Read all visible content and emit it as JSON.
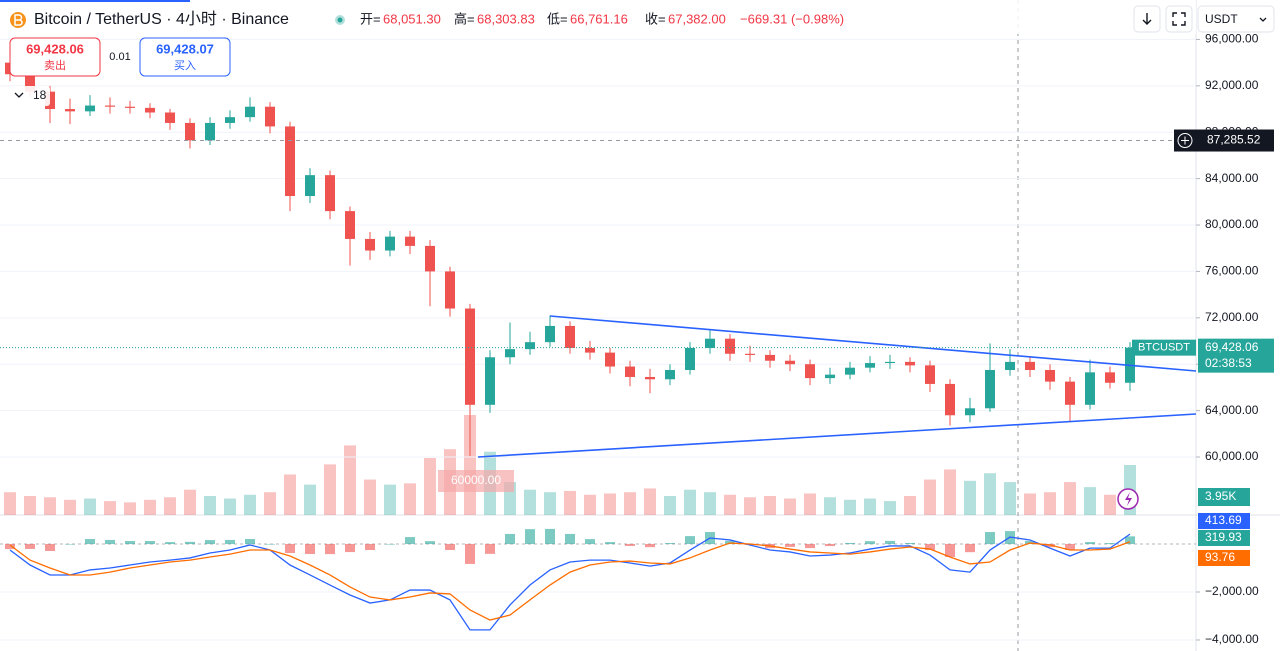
{
  "header": {
    "symbol": "Bitcoin / TetherUS · 4小时 · Binance",
    "open_label": "开=",
    "open": "68,051.30",
    "high_label": "高=",
    "high": "68,303.83",
    "low_label": "低=",
    "low": "66,761.16",
    "close_label": "收=",
    "close": "67,382.00",
    "change": "−669.31 (−0.98%)"
  },
  "toolbar": {
    "currency": "USDT"
  },
  "trade": {
    "sell_price": "69,428.06",
    "sell": "卖出",
    "spread": "0.01",
    "buy_price": "69,428.07",
    "buy": "买入",
    "indicators": "18"
  },
  "chart_data": {
    "type": "candlestick",
    "open": [
      94000,
      93000,
      91500,
      90000,
      89800,
      90300,
      90200,
      90100,
      89700,
      88800,
      87300,
      88800,
      89300,
      90200,
      88500,
      82500,
      84300,
      81200,
      78800,
      77800,
      79000,
      78200,
      76000,
      72800,
      64500,
      68600,
      69300,
      69900,
      71300,
      69400,
      69000,
      67800,
      66900,
      66700,
      67500,
      69400,
      70200,
      68900,
      68800,
      68300,
      68000,
      66800,
      67100,
      67700,
      68100,
      68200,
      67900,
      66300,
      63600,
      64200,
      67500,
      68200,
      67500,
      66500,
      64500,
      67300,
      66400
    ],
    "high": [
      94800,
      93500,
      92000,
      90900,
      91200,
      91000,
      90700,
      90500,
      90000,
      89200,
      89300,
      89900,
      91000,
      90600,
      88900,
      84900,
      84700,
      81600,
      79400,
      79500,
      79500,
      78700,
      76400,
      73200,
      69200,
      71600,
      70800,
      72200,
      71700,
      70000,
      69400,
      68300,
      67600,
      68000,
      69900,
      71000,
      70600,
      69600,
      69200,
      68800,
      68400,
      67700,
      68200,
      68700,
      68800,
      68600,
      68300,
      66700,
      65100,
      69800,
      69300,
      68700,
      68000,
      66900,
      68400,
      67800,
      69900
    ],
    "low": [
      92400,
      91000,
      88800,
      88700,
      89400,
      89600,
      89600,
      89200,
      88200,
      86600,
      86900,
      88300,
      88900,
      87900,
      81200,
      81900,
      80500,
      76500,
      77000,
      77300,
      77500,
      73000,
      72100,
      60100,
      63800,
      68000,
      68800,
      69500,
      68900,
      68400,
      67200,
      66100,
      65500,
      66200,
      67100,
      68900,
      68300,
      68200,
      67700,
      67400,
      66200,
      66300,
      66700,
      67300,
      67600,
      67300,
      65600,
      62700,
      63000,
      63900,
      67000,
      66900,
      65800,
      63000,
      64100,
      65900,
      65700
    ],
    "close": [
      93000,
      91500,
      90000,
      89800,
      90300,
      90200,
      90100,
      89700,
      88800,
      87300,
      88800,
      89300,
      90200,
      88500,
      82500,
      84300,
      81200,
      78800,
      77800,
      79000,
      78200,
      76000,
      72800,
      64500,
      68600,
      69300,
      69900,
      71300,
      69400,
      69000,
      67800,
      66900,
      66700,
      67500,
      69400,
      70200,
      68900,
      68800,
      68300,
      68000,
      66800,
      67100,
      67700,
      68100,
      68200,
      67900,
      66300,
      63600,
      64200,
      67500,
      68200,
      67500,
      66500,
      64500,
      67300,
      66400,
      69428.06
    ],
    "up_color": "#26a69a",
    "down_color": "#ef5350",
    "ylim": [
      55000,
      99400
    ],
    "yticks": [
      {
        "value": 60000,
        "label": "60,000.00"
      },
      {
        "value": 64000,
        "label": "64,000.00"
      },
      {
        "value": 68000,
        "label": "68,000.00"
      },
      {
        "value": 72000,
        "label": "72,000.00"
      },
      {
        "value": 76000,
        "label": "76,000.00"
      },
      {
        "value": 80000,
        "label": "80,000.00"
      },
      {
        "value": 84000,
        "label": "84,000.00"
      },
      {
        "value": 88000,
        "label": "88,000.00"
      },
      {
        "value": 92000,
        "label": "92,000.00"
      },
      {
        "value": 96000,
        "label": "96,000.00"
      }
    ],
    "grid": true,
    "volume": {
      "values": [
        1800,
        1500,
        1400,
        1200,
        1300,
        1100,
        1000,
        1200,
        1400,
        2000,
        1500,
        1300,
        1600,
        1800,
        3200,
        2400,
        4000,
        5500,
        2800,
        2400,
        2500,
        4500,
        5200,
        7900,
        5000,
        2600,
        2000,
        1800,
        1900,
        1600,
        1700,
        1800,
        2100,
        1500,
        2000,
        1800,
        1600,
        1400,
        1500,
        1300,
        1700,
        1400,
        1200,
        1300,
        1100,
        1500,
        2800,
        3600,
        2700,
        3300,
        2600,
        1700,
        1800,
        2600,
        2200,
        1600,
        3950
      ],
      "last_label": "3.95K"
    },
    "macd": {
      "ylim": [
        -4460,
        1210
      ],
      "yticks": [
        {
          "value": -4000,
          "label": "−4,000.00"
        },
        {
          "value": -2000,
          "label": "−2,000.00"
        }
      ],
      "macd_color": "#2962ff",
      "signal_color": "#ff6d00",
      "histogram": [
        -210,
        -205,
        -290,
        0,
        210,
        170,
        125,
        125,
        80,
        90,
        165,
        170,
        210,
        0,
        -375,
        -415,
        -420,
        -335,
        -250,
        0,
        290,
        120,
        -250,
        -830,
        -410,
        420,
        620,
        630,
        420,
        205,
        80,
        -80,
        -130,
        40,
        330,
        500,
        130,
        -40,
        -170,
        -120,
        -170,
        -85,
        45,
        120,
        130,
        45,
        -250,
        -540,
        -340,
        500,
        540,
        130,
        -130,
        -250,
        80,
        40,
        319.93
      ],
      "macd": [
        -250,
        -875,
        -1290,
        -1290,
        -1080,
        -1000,
        -875,
        -750,
        -670,
        -580,
        -375,
        -250,
        -40,
        -250,
        -875,
        -1290,
        -1710,
        -2125,
        -2460,
        -2330,
        -1920,
        -1920,
        -2330,
        -3580,
        -3580,
        -2540,
        -1710,
        -1080,
        -750,
        -670,
        -670,
        -790,
        -920,
        -790,
        -250,
        250,
        170,
        -40,
        -250,
        -330,
        -500,
        -460,
        -375,
        -210,
        -80,
        -80,
        -460,
        -1080,
        -1170,
        -250,
        290,
        170,
        -170,
        -500,
        -170,
        -170,
        413.69
      ],
      "signal": [
        -40,
        -670,
        -1000,
        -1290,
        -1290,
        -1170,
        -1000,
        -875,
        -750,
        -670,
        -540,
        -420,
        -250,
        -250,
        -500,
        -875,
        -1290,
        -1790,
        -2210,
        -2330,
        -2210,
        -2040,
        -2080,
        -2750,
        -3170,
        -2960,
        -2330,
        -1710,
        -1170,
        -875,
        -750,
        -710,
        -790,
        -830,
        -580,
        -250,
        40,
        0,
        -80,
        -210,
        -330,
        -375,
        -420,
        -330,
        -210,
        -125,
        -210,
        -540,
        -830,
        -750,
        -250,
        40,
        -40,
        -250,
        -250,
        -210,
        93.76
      ]
    },
    "crosshair": {
      "value": 87285.52,
      "label": "87,285.52"
    },
    "last_price": {
      "symbol": "BTCUSDT",
      "value": 69428.06,
      "label": "69,428.06",
      "countdown": "02:38:53"
    },
    "trendline_label": "60000.00"
  }
}
